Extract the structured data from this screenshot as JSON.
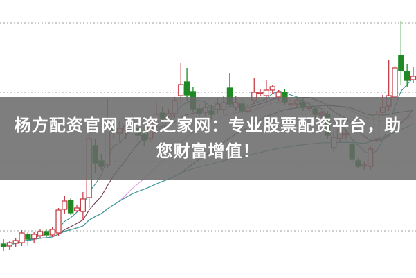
{
  "banner": {
    "line1": "杨方配资官网 配资之家网：专业股票配资平台，助",
    "line2": "您财富增值！"
  },
  "chart_data": {
    "type": "candlestick",
    "title": "",
    "xlabel": "",
    "ylabel": "",
    "grid": true,
    "grid_style": "dotted horizontal",
    "grid_levels": [
      67,
      167,
      267,
      367
    ],
    "ylim": [
      0,
      400
    ],
    "colors": {
      "up": "#c8404a",
      "down": "#1f8a24",
      "grid": "#b0b0b0"
    },
    "moving_averages": [
      {
        "period": 5,
        "color": "#3b8f8f"
      },
      {
        "period": 10,
        "color": "#6b3a4c"
      },
      {
        "period": 20,
        "color": "#e39ae6"
      },
      {
        "period": 30,
        "color": "#2f6e2f"
      },
      {
        "period": 60,
        "color": "#3f9ea6"
      }
    ],
    "ohlc": [
      [
        48,
        55,
        38,
        44
      ],
      [
        45,
        52,
        40,
        50
      ],
      [
        49,
        56,
        44,
        53
      ],
      [
        50,
        68,
        45,
        64
      ],
      [
        62,
        66,
        45,
        55
      ],
      [
        56,
        66,
        50,
        62
      ],
      [
        60,
        70,
        56,
        66
      ],
      [
        66,
        70,
        58,
        61
      ],
      [
        61,
        72,
        58,
        69
      ],
      [
        64,
        100,
        60,
        97
      ],
      [
        98,
        118,
        92,
        110
      ],
      [
        111,
        114,
        90,
        93
      ],
      [
        96,
        104,
        94,
        100
      ],
      [
        95,
        123,
        82,
        113
      ],
      [
        115,
        210,
        100,
        200
      ],
      [
        190,
        200,
        150,
        165
      ],
      [
        168,
        178,
        155,
        160
      ],
      [
        162,
        257,
        158,
        215
      ],
      [
        220,
        230,
        200,
        210
      ],
      [
        208,
        225,
        195,
        215
      ],
      [
        212,
        230,
        200,
        218
      ],
      [
        215,
        237,
        205,
        225
      ],
      [
        215,
        220,
        195,
        205
      ],
      [
        205,
        212,
        190,
        198
      ],
      [
        200,
        230,
        195,
        222
      ],
      [
        220,
        253,
        215,
        235
      ],
      [
        237,
        245,
        222,
        230
      ],
      [
        232,
        243,
        225,
        236
      ],
      [
        236,
        260,
        230,
        255
      ],
      [
        262,
        309,
        250,
        278
      ],
      [
        282,
        302,
        255,
        263
      ],
      [
        268,
        275,
        238,
        243
      ],
      [
        243,
        250,
        230,
        236
      ],
      [
        238,
        252,
        232,
        245
      ],
      [
        240,
        248,
        228,
        235
      ],
      [
        242,
        258,
        236,
        250
      ],
      [
        242,
        262,
        236,
        252
      ],
      [
        273,
        294,
        245,
        250
      ],
      [
        245,
        262,
        240,
        252
      ],
      [
        250,
        258,
        235,
        240
      ],
      [
        240,
        250,
        235,
        245
      ],
      [
        255,
        288,
        250,
        267
      ],
      [
        267,
        272,
        262,
        267
      ],
      [
        262,
        284,
        255,
        270
      ],
      [
        270,
        278,
        265,
        275
      ],
      [
        260,
        270,
        255,
        267
      ],
      [
        267,
        272,
        248,
        253
      ],
      [
        250,
        258,
        242,
        250
      ],
      [
        250,
        258,
        245,
        255
      ],
      [
        252,
        258,
        240,
        245
      ],
      [
        245,
        252,
        240,
        245
      ],
      [
        243,
        247,
        230,
        235
      ],
      [
        234,
        240,
        230,
        237
      ],
      [
        235,
        240,
        200,
        205
      ],
      [
        187,
        210,
        180,
        202
      ],
      [
        200,
        218,
        195,
        213
      ],
      [
        207,
        212,
        200,
        207
      ],
      [
        192,
        200,
        165,
        170
      ],
      [
        168,
        172,
        158,
        160
      ],
      [
        162,
        166,
        155,
        162
      ],
      [
        160,
        190,
        155,
        185
      ],
      [
        200,
        240,
        195,
        235
      ],
      [
        238,
        263,
        235,
        245
      ],
      [
        247,
        313,
        240,
        262
      ],
      [
        260,
        305,
        255,
        302
      ],
      [
        320,
        370,
        277,
        298
      ],
      [
        297,
        307,
        275,
        284
      ],
      [
        285,
        303,
        280,
        290
      ]
    ]
  }
}
